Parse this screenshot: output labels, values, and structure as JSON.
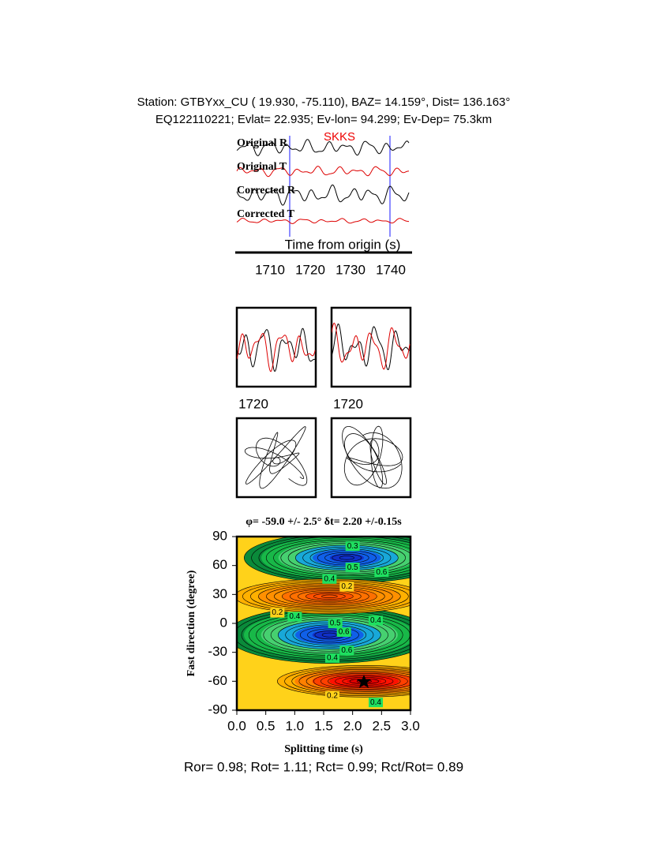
{
  "header": {
    "station": "Station: GTBYxx_CU (  19.930,  -75.110), BAZ=  14.159°, Dist=  136.163°",
    "event": "EQ122110221; Evlat=  22.935; Ev-lon=  94.299; Ev-Dep= 75.3km"
  },
  "traces": {
    "phase": "SKKS",
    "labels": [
      "Original R",
      "Original T",
      "Corrected R",
      "Corrected T"
    ],
    "xlabel": "Time from origin (s)",
    "xticks": [
      "1710",
      "1720",
      "1730",
      "1740"
    ]
  },
  "particle": {
    "xticks": [
      "1720",
      "1720"
    ]
  },
  "grid_search": {
    "title": "φ= -59.0 +/- 2.5° δt= 2.20 +/-0.15s",
    "ylabel": "Fast direction (degree)",
    "xlabel": "Splitting time (s)",
    "yticks": [
      "90",
      "60",
      "30",
      "0",
      "-30",
      "-60",
      "-90"
    ],
    "xticks": [
      "0.0",
      "0.5",
      "1.0",
      "1.5",
      "2.0",
      "2.5",
      "3.0"
    ],
    "contour_labels": [
      "0.3",
      "0.5",
      "0.6",
      "0.4",
      "0.2",
      "0.2",
      "0.4",
      "0.5",
      "0.6",
      "0.4",
      "0.6",
      "0.4",
      "0.2",
      "0.4"
    ]
  },
  "footer": "Ror= 0.98; Rot= 1.11; Rct= 0.99; Rct/Rot= 0.89"
}
